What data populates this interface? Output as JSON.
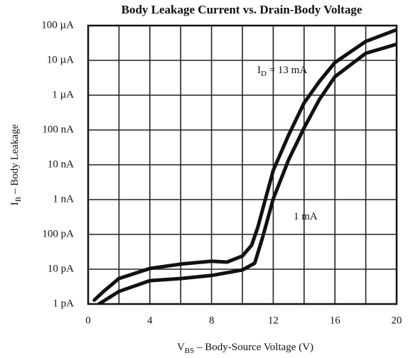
{
  "chart_data": {
    "type": "line",
    "title": "Body Leakage Current vs. Drain-Body Voltage",
    "x_label": {
      "symbol": "V",
      "subscript": "BS",
      "text": " – Body-Source Voltage (V)"
    },
    "y_label": {
      "symbol": "I",
      "subscript": "B",
      "text": " – Body Leakage"
    },
    "log_y": true,
    "grid": true,
    "xlim": [
      0,
      20
    ],
    "xticks": [
      0,
      4,
      8,
      12,
      16,
      20
    ],
    "xminor": [
      2,
      6,
      10,
      14,
      18
    ],
    "ylim": [
      1e-12,
      0.0001
    ],
    "yticks": [
      {
        "value": 1e-12,
        "label": "1 pA"
      },
      {
        "value": 1e-11,
        "label": "10 pA"
      },
      {
        "value": 1e-10,
        "label": "100 pA"
      },
      {
        "value": 1e-09,
        "label": "1 nA"
      },
      {
        "value": 1e-08,
        "label": "10 nA"
      },
      {
        "value": 1e-07,
        "label": "100 nA"
      },
      {
        "value": 1e-06,
        "label": "1 µA"
      },
      {
        "value": 1e-05,
        "label": "10 µA"
      },
      {
        "value": 0.0001,
        "label": "100 µA"
      }
    ],
    "series": [
      {
        "name": "13 mA",
        "color": "#111111",
        "x": [
          0.4,
          1,
          2,
          4,
          6,
          8,
          9,
          10,
          10.6,
          11,
          11.5,
          12,
          13,
          14,
          15,
          16,
          18,
          20
        ],
        "values": [
          1.3e-12,
          2.3e-12,
          5.4e-12,
          1.05e-11,
          1.4e-11,
          1.7e-11,
          1.6e-11,
          2.4e-11,
          4.9e-11,
          1.6e-10,
          1.05e-09,
          6.9e-09,
          7.2e-08,
          6e-07,
          2.5e-06,
          8.7e-06,
          3.5e-05,
          7.6e-05
        ],
        "annotation": {
          "symbol": "I",
          "subscript": "D",
          "text": " = "
        }
      },
      {
        "name": "1 mA",
        "color": "#111111",
        "x": [
          0.7,
          2,
          4,
          6,
          8,
          10,
          10.8,
          11.3,
          12,
          13,
          14,
          15,
          16,
          18,
          20
        ],
        "values": [
          1e-12,
          2.3e-12,
          4.7e-12,
          5.4e-12,
          6.6e-12,
          9.5e-12,
          1.5e-11,
          7.9e-11,
          1.05e-09,
          1.4e-08,
          1.15e-07,
          7.6e-07,
          3.4e-06,
          1.6e-05,
          2.9e-05
        ]
      }
    ]
  }
}
